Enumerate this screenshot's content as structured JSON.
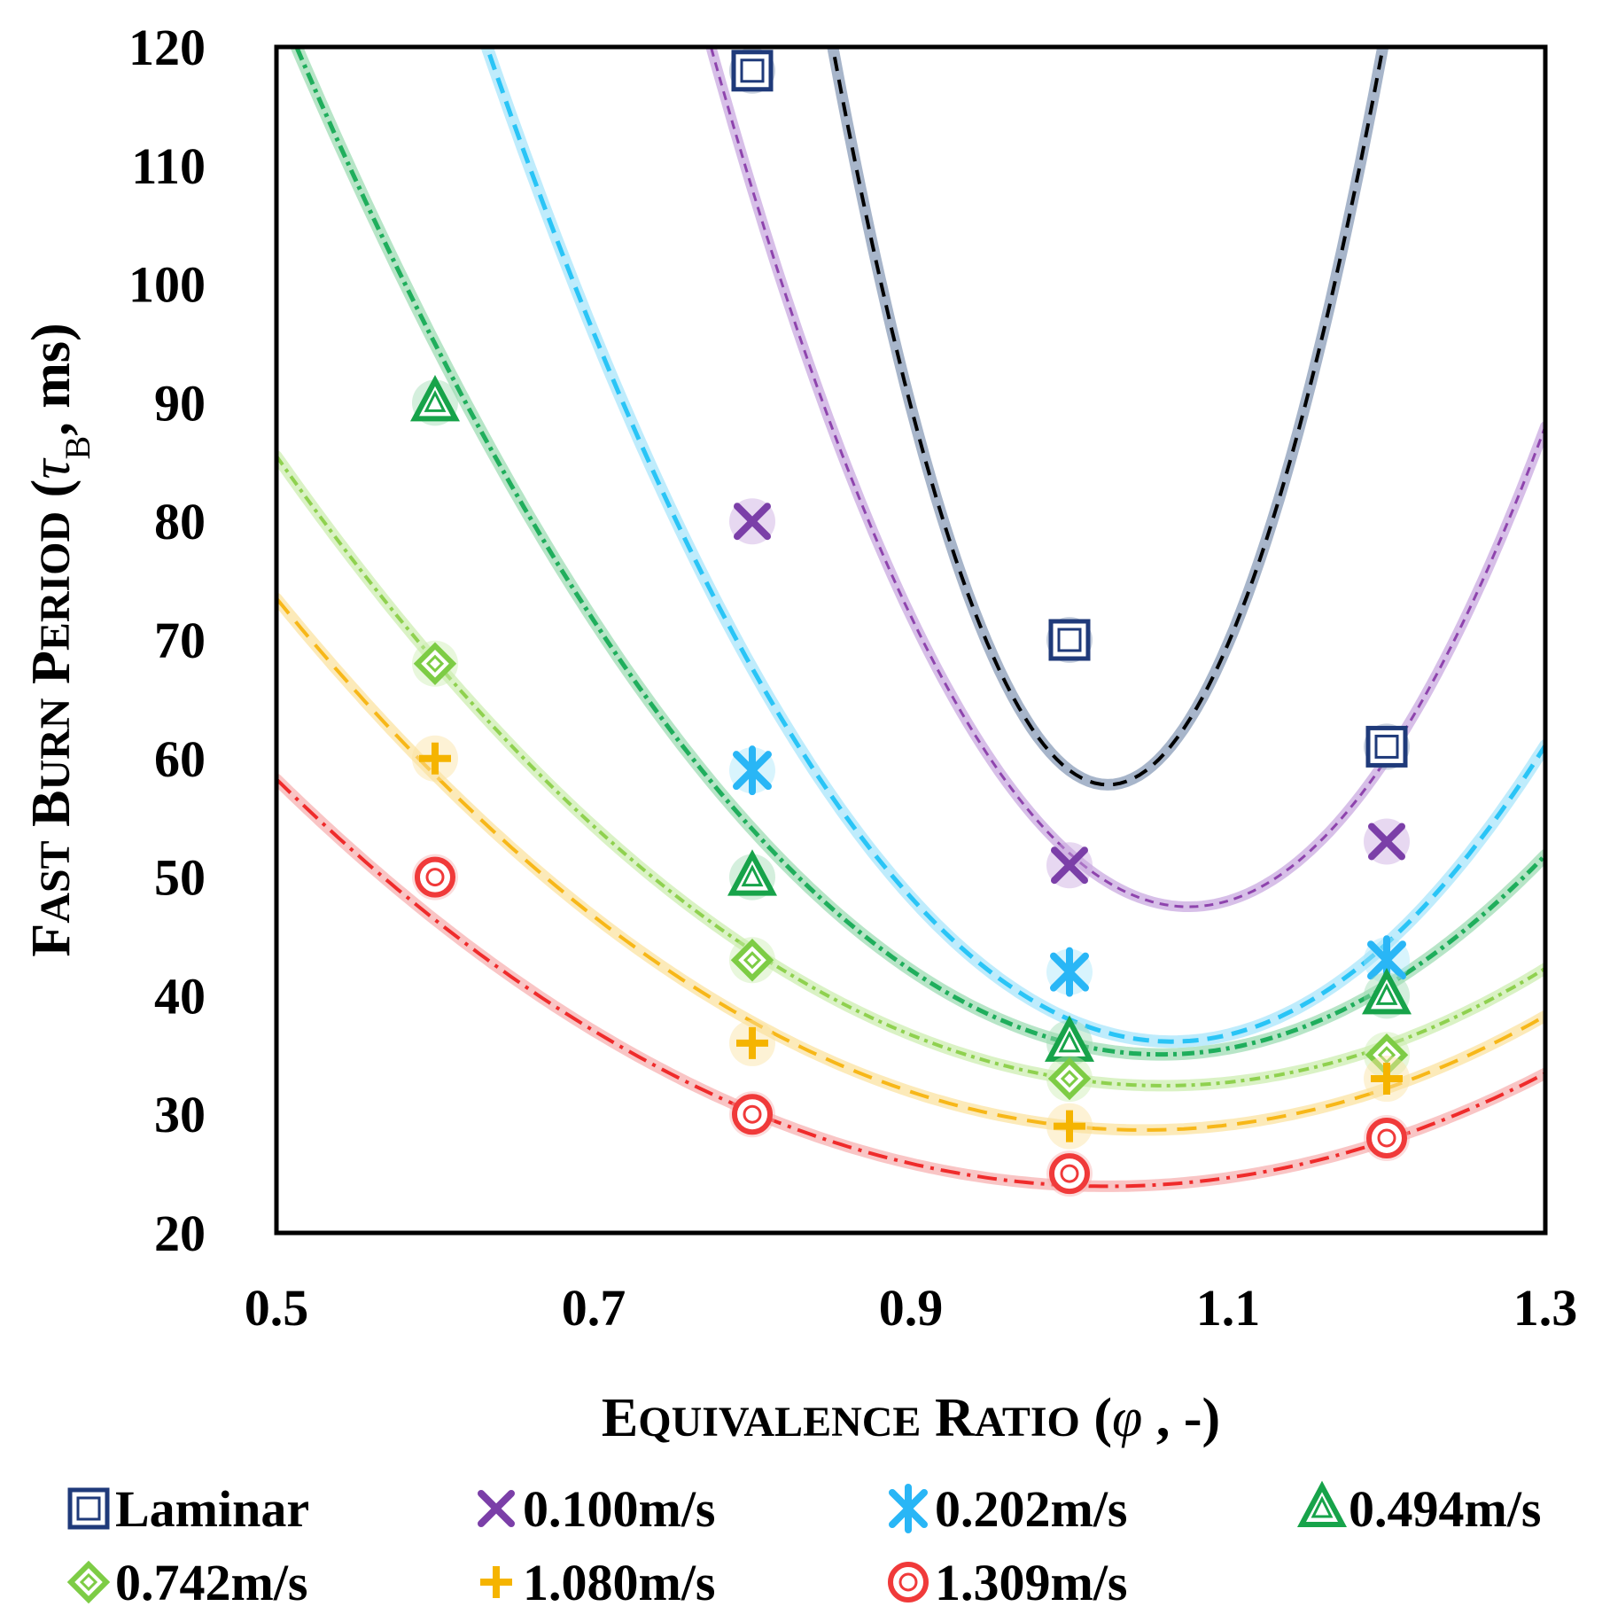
{
  "chart_data": {
    "type": "scatter",
    "xlabel": "Equivalence Ratio (φ, -)",
    "ylabel": "Fast Burn Period (τB, ms)",
    "xlabel_parts": {
      "cap1": "E",
      "rest1": "QUIVALENCE",
      "cap2": "R",
      "rest2": "ATIO",
      "open": " (",
      "symbol": "φ",
      "close": " , -)"
    },
    "ylabel_parts": {
      "cap1": "F",
      "rest1": "AST",
      "cap2": "B",
      "rest2": "URN",
      "cap3": "P",
      "rest3": "ERIOD",
      "open": " (",
      "symbol": "τ",
      "sub": "B",
      "close": ", ms)"
    },
    "xlim": [
      0.5,
      1.3
    ],
    "ylim": [
      20,
      120
    ],
    "x_ticks": [
      "0.5",
      "0.7",
      "0.9",
      "1.1",
      "1.3"
    ],
    "y_ticks": [
      "20",
      "30",
      "40",
      "50",
      "60",
      "70",
      "80",
      "90",
      "100",
      "110",
      "120"
    ],
    "legend_position": "bottom",
    "series": [
      {
        "name": "Laminar",
        "color": "#1f3a7a",
        "line": "#000000",
        "glow": "#8a9cb8",
        "marker": "square",
        "x": [
          0.8,
          1.0,
          1.2
        ],
        "y": [
          118,
          70,
          61
        ],
        "fit": [
          2067.5,
          -4235.0,
          2226.5
        ],
        "dash": "16 10",
        "width": 4
      },
      {
        "name": "0.100m/s",
        "color": "#7b3fa8",
        "line": "#8e44ad",
        "glow": "#c9a9e0",
        "marker": "x",
        "x": [
          0.8,
          1.0,
          1.2
        ],
        "y": [
          80,
          51,
          53
        ],
        "fit": [
          800.0,
          -1720.0,
          972.0
        ],
        "dash": "10 7",
        "width": 3
      },
      {
        "name": "0.202m/s",
        "color": "#29b6f6",
        "line": "#29c4f6",
        "glow": "#a9e6fb",
        "marker": "star",
        "x": [
          0.8,
          1.0,
          1.2
        ],
        "y": [
          59,
          42,
          43
        ],
        "fit": [
          450.0,
          -958.0,
          546.0
        ],
        "dash": "18 10",
        "width": 5
      },
      {
        "name": "0.494m/s",
        "color": "#17a34a",
        "line": "#1fae5c",
        "glow": "#9fdcb4",
        "marker": "triangle",
        "x": [
          0.6,
          0.8,
          1.0,
          1.2
        ],
        "y": [
          90,
          50,
          36,
          40
        ],
        "fit": [
          286.0,
          -605.0,
          355.0
        ],
        "dash": "14 6 4 6",
        "width": 5
      },
      {
        "name": "0.742m/s",
        "color": "#7dcc45",
        "line": "#8fd14f",
        "glow": "#cdeeb2",
        "marker": "diamond",
        "x": [
          0.6,
          0.8,
          1.0,
          1.2
        ],
        "y": [
          68,
          43,
          33,
          35
        ],
        "fit": [
          170.0,
          -360.0,
          223.0
        ],
        "dash": "12 6 4 6",
        "width": 4
      },
      {
        "name": "1.080m/s",
        "color": "#f5b400",
        "line": "#f7b718",
        "glow": "#fbe3a2",
        "marker": "plus",
        "x": [
          0.6,
          0.8,
          1.0,
          1.2
        ],
        "y": [
          60,
          36,
          29,
          33
        ],
        "fit": [
          150.0,
          -314.0,
          193.0
        ],
        "dash": "22 12",
        "width": 4
      },
      {
        "name": "1.309m/s",
        "color": "#f03a3a",
        "line": "#ef2b2b",
        "glow": "#f7b2b2",
        "marker": "circle",
        "x": [
          0.6,
          0.8,
          1.0,
          1.2
        ],
        "y": [
          50,
          30,
          25,
          28
        ],
        "fit": [
          125.0,
          -256.0,
          155.0
        ],
        "dash": "22 8 4 8",
        "width": 4
      }
    ]
  }
}
